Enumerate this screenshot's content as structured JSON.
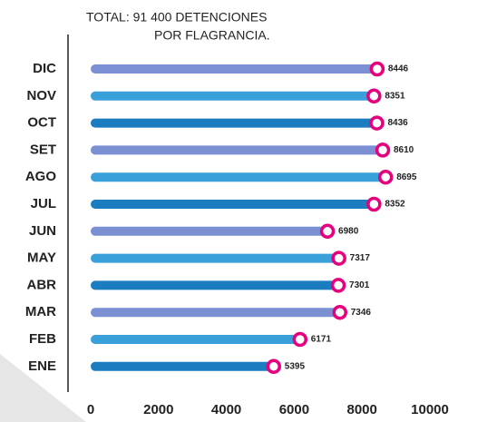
{
  "chart_data": {
    "type": "lollipop-bar",
    "title": [
      "TOTAL: 91 400 DETENCIONES",
      "POR FLAGRANCIA."
    ],
    "categories": [
      "DIC",
      "NOV",
      "OCT",
      "SET",
      "AGO",
      "JUL",
      "JUN",
      "MAY",
      "ABR",
      "MAR",
      "FEB",
      "ENE"
    ],
    "values": [
      8446,
      8351,
      8436,
      8610,
      8695,
      8352,
      6980,
      7317,
      7301,
      7346,
      6171,
      5395
    ],
    "colors": [
      "#7b8fd3",
      "#3aa0da",
      "#1c7cc0",
      "#7b8fd3",
      "#3aa0da",
      "#1c7cc0",
      "#7b8fd3",
      "#3aa0da",
      "#1c7cc0",
      "#7b8fd3",
      "#3aa0da",
      "#1c7cc0"
    ],
    "marker_color": "#e5007d",
    "xlim": [
      0,
      10000
    ],
    "xticks": [
      0,
      2000,
      4000,
      6000,
      8000,
      10000
    ]
  }
}
